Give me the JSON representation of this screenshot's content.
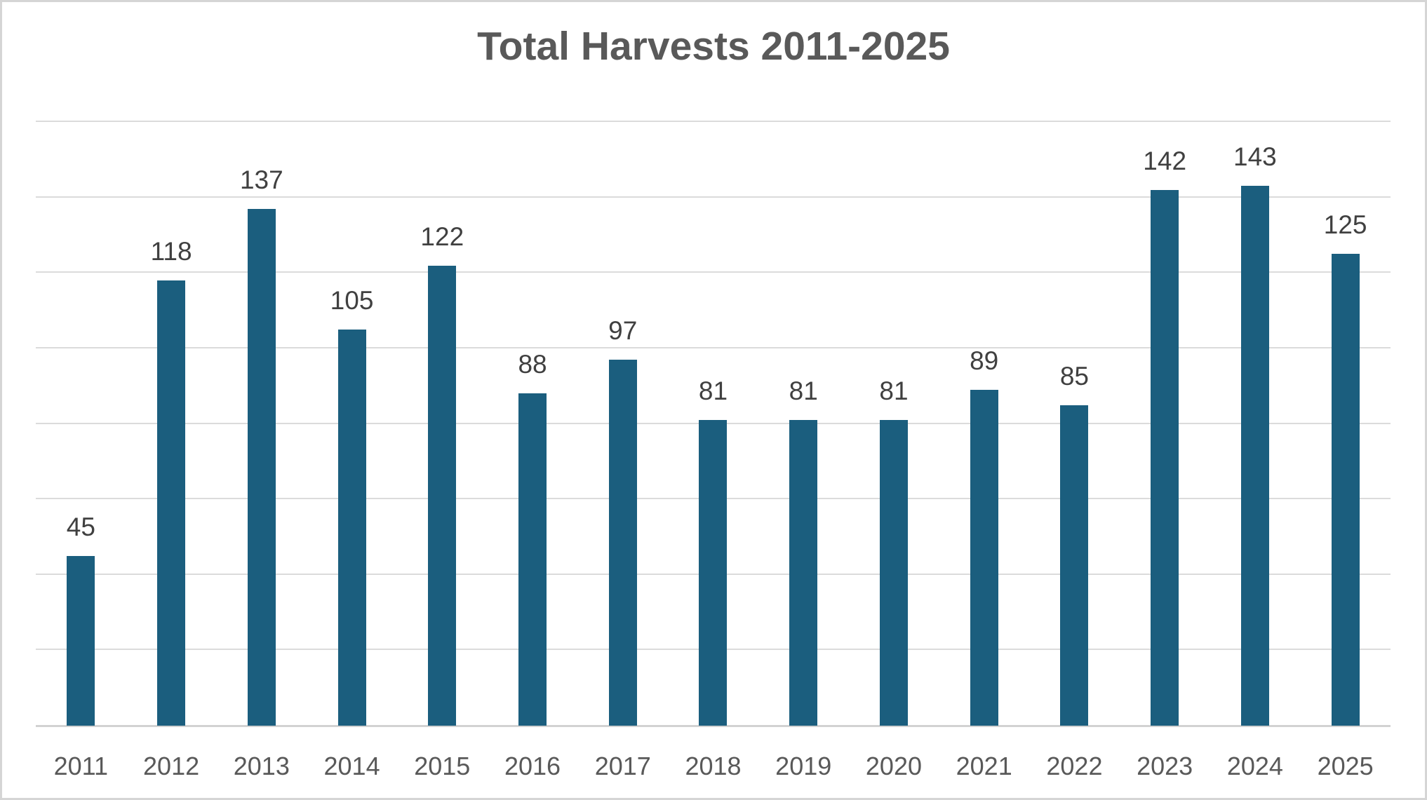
{
  "chart_data": {
    "type": "bar",
    "title": "Total Harvests 2011-2025",
    "categories": [
      "2011",
      "2012",
      "2013",
      "2014",
      "2015",
      "2016",
      "2017",
      "2018",
      "2019",
      "2020",
      "2021",
      "2022",
      "2023",
      "2024",
      "2025"
    ],
    "values": [
      45,
      118,
      137,
      105,
      122,
      88,
      97,
      81,
      81,
      81,
      89,
      85,
      142,
      143,
      125
    ],
    "xlabel": "",
    "ylabel": "",
    "ylim": [
      0,
      160
    ],
    "grid_interval": 20,
    "grid": "horizontal",
    "legend": "none",
    "data_labels": true
  },
  "colors": {
    "bar": "#1B5E7E",
    "title_text": "#595959",
    "value_label_text": "#404040",
    "axis_label_text": "#595959",
    "gridline": "#DBDBDB",
    "axis_line": "#D2D2D2",
    "canvas_border": "#D5D5D5",
    "background": "#FFFFFF"
  }
}
